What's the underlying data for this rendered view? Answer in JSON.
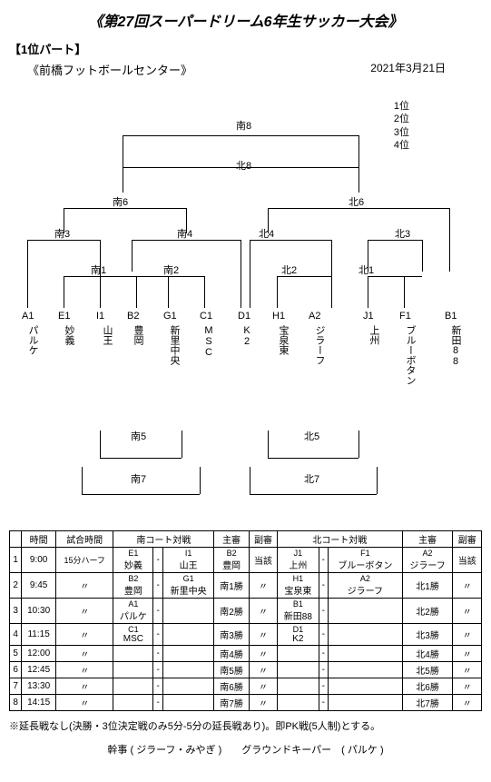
{
  "title": "《第27回スーパードリーム6年生サッカー大会》",
  "part_label": "【1位パート】",
  "date": "2021年3月21日",
  "venue": "《前橋フットボールセンター》",
  "rank": [
    "1位",
    "2位",
    "3位",
    "4位"
  ],
  "nodes": {
    "top": "南8",
    "mid": "北8",
    "s6": "南6",
    "n6": "北6",
    "s3": "南3",
    "s4": "南4",
    "n4": "北4",
    "n3": "北3",
    "s1": "南1",
    "s2": "南2",
    "n2": "北2",
    "n1": "北1",
    "s5": "南5",
    "s7": "南7",
    "n5": "北5",
    "n7": "北7"
  },
  "teams": [
    {
      "code": "A1",
      "name": "パルケ"
    },
    {
      "code": "E1",
      "name": "妙義"
    },
    {
      "code": "I1",
      "name": "山王"
    },
    {
      "code": "B2",
      "name": "豊岡"
    },
    {
      "code": "G1",
      "name": "新里中央"
    },
    {
      "code": "C1",
      "name": "MSC"
    },
    {
      "code": "D1",
      "name": "K2"
    },
    {
      "code": "H1",
      "name": "宝泉東"
    },
    {
      "code": "A2",
      "name": "ジラーフ"
    },
    {
      "code": "J1",
      "name": "上州"
    },
    {
      "code": "F1",
      "name": "ブルーボタン"
    },
    {
      "code": "B1",
      "name": "新田88"
    }
  ],
  "schedule": {
    "headers": [
      "",
      "時間",
      "試合時間",
      "南コート対戦",
      "",
      "",
      "主審",
      "副審",
      "北コート対戦",
      "",
      "",
      "主審",
      "副審"
    ],
    "rows": [
      {
        "n": "1",
        "time": "9:00",
        "dur": "15分ハーフ",
        "m1a": "E1\n妙義",
        "dash": "-",
        "m1b": "I1\n山王",
        "ref1": "B2\n豊岡",
        "ar1": "当該",
        "m2a": "J1\n上州",
        "m2b": "F1\nブルーボタン",
        "ref2": "A2\nジラーフ",
        "ar2": "当該"
      },
      {
        "n": "2",
        "time": "9:45",
        "dur": "〃",
        "m1a": "B2\n豊岡",
        "dash": "-",
        "m1b": "G1\n新里中央",
        "ref1": "南1勝",
        "ar1": "〃",
        "m2a": "H1\n宝泉東",
        "m2b": "A2\nジラーフ",
        "ref2": "北1勝",
        "ar2": "〃"
      },
      {
        "n": "3",
        "time": "10:30",
        "dur": "〃",
        "m1a": "A1\nパルケ",
        "dash": "",
        "m1b": "",
        "ref1": "南2勝",
        "ar1": "〃",
        "m2a": "B1\n新田88",
        "m2b": "",
        "ref2": "北2勝",
        "ar2": "〃"
      },
      {
        "n": "4",
        "time": "11:15",
        "dur": "〃",
        "m1a": "C1\nMSC",
        "dash": "",
        "m1b": "",
        "ref1": "南3勝",
        "ar1": "〃",
        "m2a": "D1\nK2",
        "m2b": "",
        "ref2": "北3勝",
        "ar2": "〃"
      },
      {
        "n": "5",
        "time": "12:00",
        "dur": "〃",
        "m1a": "",
        "dash": "",
        "m1b": "",
        "ref1": "南4勝",
        "ar1": "〃",
        "m2a": "",
        "m2b": "",
        "ref2": "北4勝",
        "ar2": "〃"
      },
      {
        "n": "6",
        "time": "12:45",
        "dur": "〃",
        "m1a": "",
        "dash": "",
        "m1b": "",
        "ref1": "南5勝",
        "ar1": "〃",
        "m2a": "",
        "m2b": "",
        "ref2": "北5勝",
        "ar2": "〃"
      },
      {
        "n": "7",
        "time": "13:30",
        "dur": "〃",
        "m1a": "",
        "dash": "",
        "m1b": "",
        "ref1": "南6勝",
        "ar1": "〃",
        "m2a": "",
        "m2b": "",
        "ref2": "北6勝",
        "ar2": "〃"
      },
      {
        "n": "8",
        "time": "14:15",
        "dur": "〃",
        "m1a": "",
        "dash": "",
        "m1b": "",
        "ref1": "南7勝",
        "ar1": "〃",
        "m2a": "",
        "m2b": "",
        "ref2": "北7勝",
        "ar2": "〃"
      }
    ]
  },
  "note": "※延長戦なし(決勝・3位決定戦のみ5分-5分の延長戦あり)。即PK戦(5人制)とする。",
  "footer": {
    "label1": "幹事 (",
    "val1": "ジラーフ・みやぎ",
    "label2": ")　　グラウンドキーパー　(",
    "val2": "パルケ",
    "label3": ")"
  }
}
